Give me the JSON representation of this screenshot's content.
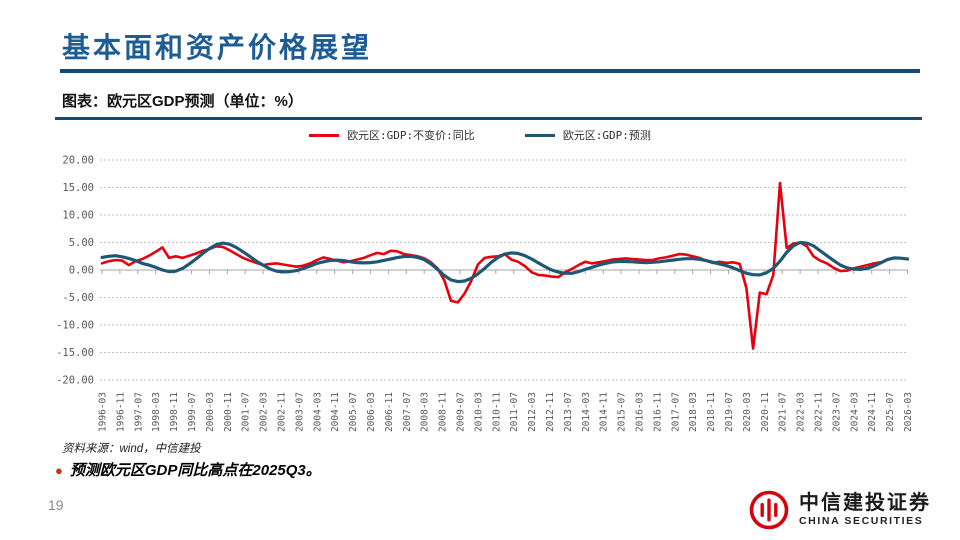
{
  "slide": {
    "title": "基本面和资产价格展望",
    "chart_caption": "图表：欧元区GDP预测（单位：%）",
    "source": "资料来源：wind，中信建投",
    "bullet": "预测欧元区GDP同比高点在2025Q3。",
    "page_number": "19",
    "logo": {
      "cn": "中信建投证券",
      "en": "CHINA SECURITIES"
    }
  },
  "colors": {
    "accent_navy": "#1A4971",
    "title_blue": "#1E5C94",
    "actual_red": "#E8000D",
    "forecast_blue": "#1F5874",
    "grid_gray": "#bfbfbf",
    "axis_gray": "#a6a6a6",
    "tick_text": "#595959"
  },
  "chart_data": {
    "type": "line",
    "title": "欧元区GDP预测（单位：%）",
    "xlabel": "",
    "ylabel": "",
    "ylim": [
      -20,
      20
    ],
    "grid": true,
    "legend_position": "top",
    "x_start": "1996-03",
    "x_end": "2026-03",
    "y_tick_labels": [
      "20.00",
      "15.00",
      "10.00",
      "5.00",
      "0.00",
      "-5.00",
      "-10.00",
      "-15.00",
      "-20.00"
    ],
    "x_tick_labels": [
      "1996-03",
      "1996-11",
      "1997-07",
      "1998-03",
      "1998-11",
      "1999-07",
      "2000-03",
      "2000-11",
      "2001-07",
      "2002-03",
      "2002-11",
      "2003-07",
      "2004-03",
      "2004-11",
      "2005-07",
      "2006-03",
      "2006-11",
      "2007-07",
      "2008-03",
      "2008-11",
      "2009-07",
      "2010-03",
      "2010-11",
      "2011-07",
      "2012-03",
      "2012-11",
      "2013-07",
      "2014-03",
      "2014-11",
      "2015-07",
      "2016-03",
      "2016-11",
      "2017-07",
      "2018-03",
      "2018-11",
      "2019-07",
      "2020-03",
      "2020-11",
      "2021-07",
      "2022-03",
      "2022-11",
      "2023-07",
      "2024-03",
      "2024-11",
      "2025-07",
      "2026-03"
    ],
    "series": [
      {
        "key": "gdp-actual-line",
        "name": "欧元区:GDP:不变价:同比",
        "color": "#E8000D",
        "start": "1996-03",
        "step_months": 3,
        "values": [
          1.2,
          1.6,
          1.8,
          1.7,
          0.9,
          1.6,
          2.0,
          2.6,
          3.3,
          4.1,
          2.2,
          2.5,
          2.2,
          2.6,
          3.0,
          3.5,
          3.8,
          4.3,
          4.2,
          3.6,
          2.9,
          2.2,
          1.7,
          1.3,
          0.9,
          1.1,
          1.2,
          1.0,
          0.8,
          0.6,
          0.8,
          1.2,
          1.8,
          2.3,
          2.0,
          1.7,
          1.4,
          1.6,
          1.9,
          2.2,
          2.7,
          3.1,
          2.9,
          3.5,
          3.4,
          2.9,
          2.7,
          2.5,
          2.1,
          1.4,
          0.3,
          -1.9,
          -5.6,
          -5.9,
          -4.3,
          -2.0,
          1.0,
          2.2,
          2.4,
          2.5,
          2.9,
          1.9,
          1.5,
          0.7,
          -0.4,
          -0.9,
          -1.0,
          -1.2,
          -1.3,
          -0.4,
          0.2,
          0.9,
          1.5,
          1.2,
          1.4,
          1.6,
          1.9,
          2.0,
          2.1,
          2.0,
          1.9,
          1.8,
          1.8,
          2.1,
          2.3,
          2.6,
          2.9,
          2.8,
          2.5,
          2.2,
          1.7,
          1.3,
          1.5,
          1.3,
          1.4,
          1.1,
          -3.3,
          -14.3,
          -4.1,
          -4.4,
          -0.9,
          15.8,
          4.0,
          4.8,
          5.0,
          4.3,
          2.5,
          1.7,
          1.2,
          0.4,
          -0.2,
          -0.1,
          0.3,
          0.6,
          0.9,
          1.2,
          1.4
        ]
      },
      {
        "key": "gdp-forecast-line",
        "name": "欧元区:GDP:预测",
        "color": "#1F5874",
        "start": "1996-03",
        "step_months": 3,
        "values": [
          2.3,
          2.5,
          2.6,
          2.4,
          2.1,
          1.7,
          1.2,
          0.9,
          0.5,
          0.0,
          -0.3,
          -0.2,
          0.3,
          1.1,
          2.0,
          3.0,
          3.9,
          4.6,
          4.9,
          4.7,
          4.1,
          3.3,
          2.5,
          1.6,
          0.9,
          0.2,
          -0.2,
          -0.35,
          -0.3,
          -0.1,
          0.3,
          0.7,
          1.2,
          1.5,
          1.75,
          1.8,
          1.7,
          1.5,
          1.35,
          1.3,
          1.35,
          1.5,
          1.75,
          2.0,
          2.25,
          2.45,
          2.5,
          2.3,
          1.9,
          1.1,
          0.1,
          -1.0,
          -1.8,
          -2.1,
          -2.0,
          -1.5,
          -0.7,
          0.3,
          1.4,
          2.3,
          2.9,
          3.1,
          3.0,
          2.6,
          2.0,
          1.3,
          0.6,
          0.0,
          -0.4,
          -0.6,
          -0.6,
          -0.3,
          0.1,
          0.5,
          0.9,
          1.2,
          1.45,
          1.55,
          1.55,
          1.5,
          1.4,
          1.35,
          1.4,
          1.5,
          1.65,
          1.8,
          1.95,
          2.05,
          2.05,
          1.95,
          1.7,
          1.4,
          1.1,
          0.8,
          0.4,
          -0.1,
          -0.6,
          -0.85,
          -0.9,
          -0.5,
          0.3,
          1.6,
          3.2,
          4.4,
          5.0,
          4.9,
          4.4,
          3.5,
          2.6,
          1.7,
          0.9,
          0.4,
          0.15,
          0.1,
          0.3,
          0.7,
          1.3,
          1.9,
          2.2,
          2.15,
          2.0
        ]
      }
    ]
  }
}
